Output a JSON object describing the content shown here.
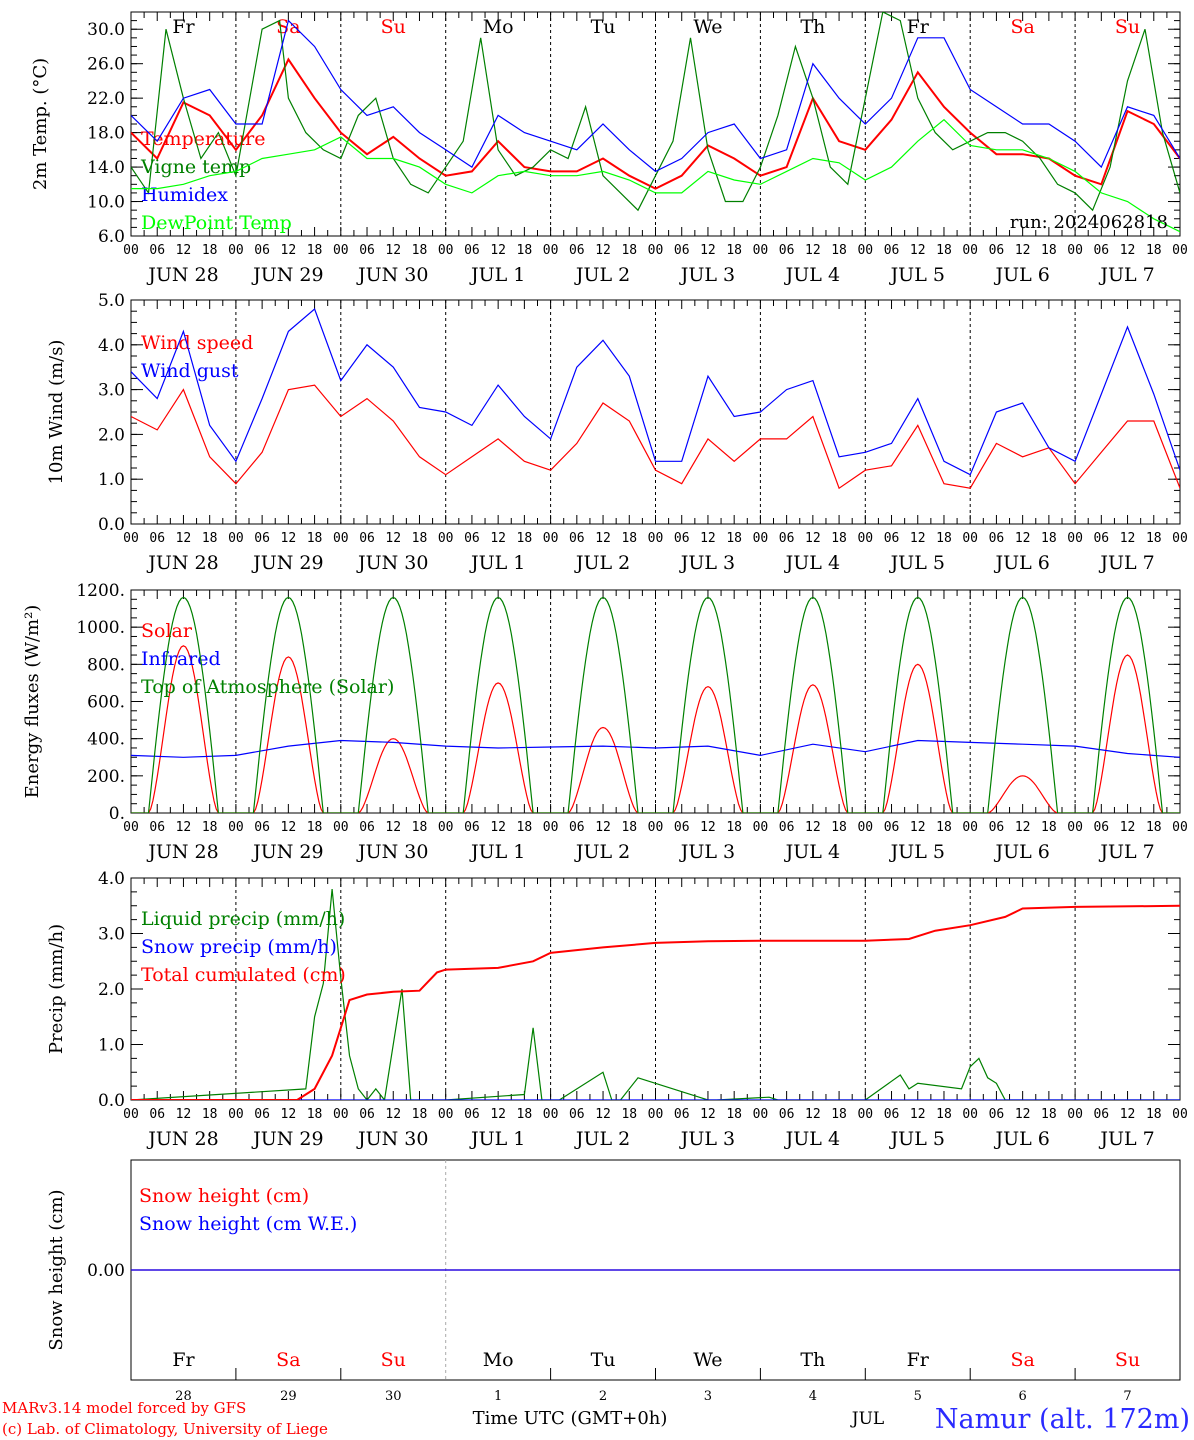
{
  "meta": {
    "run": "run: 2024062818",
    "model_note": "MARv3.14 model forced by GFS",
    "credit": "(c) Lab. of Climatology, University of Liege",
    "xlabel": "Time UTC (GMT+0h)",
    "month_label": "JUL",
    "station": "Namur (alt. 172m)"
  },
  "days": {
    "weekdays": [
      "Fr",
      "Sa",
      "Su",
      "Mo",
      "Tu",
      "We",
      "Th",
      "Fr",
      "Sa",
      "Su"
    ],
    "weekend_flags": [
      false,
      true,
      true,
      false,
      false,
      false,
      false,
      false,
      true,
      true
    ],
    "date_labels": [
      "JUN 28",
      "JUN 29",
      "JUN 30",
      "JUL  1",
      "JUL  2",
      "JUL  3",
      "JUL  4",
      "JUL  5",
      "JUL  6",
      "JUL  7"
    ],
    "day_numbers": [
      "28",
      "29",
      "30",
      "1",
      "2",
      "3",
      "4",
      "5",
      "6",
      "7"
    ],
    "hour_ticks": [
      "00",
      "06",
      "12",
      "18"
    ],
    "final_tick": "00"
  },
  "colors": {
    "red": "#ff0000",
    "green": "#008000",
    "blue": "#0000ff",
    "lime": "#00ff00",
    "weekend": "#ff0000",
    "weekday": "#000000"
  },
  "chart_data": [
    {
      "type": "line",
      "title": "",
      "ylabel": "2m Temp. (°C)",
      "ylim": [
        6,
        32
      ],
      "yticks": [
        "6.0",
        "10.0",
        "14.0",
        "18.0",
        "22.0",
        "26.0",
        "30.0"
      ],
      "xlabel": "",
      "x_unit": "hours since JUN 28 00 UTC",
      "legend_position": "top-left",
      "series": [
        {
          "name": "Temperature",
          "color": "#ff0000",
          "x": [
            0,
            6,
            12,
            18,
            24,
            30,
            36,
            42,
            48,
            54,
            60,
            66,
            72,
            78,
            84,
            90,
            96,
            102,
            108,
            114,
            120,
            126,
            132,
            138,
            144,
            150,
            156,
            162,
            168,
            174,
            180,
            186,
            192,
            198,
            204,
            210,
            216,
            222,
            228,
            234,
            240
          ],
          "y": [
            18,
            15,
            21.5,
            20,
            16,
            20,
            26.5,
            22,
            18,
            15.5,
            17.5,
            15,
            13,
            13.5,
            17,
            14,
            13.5,
            13.5,
            15,
            13,
            11.5,
            13,
            16.5,
            15,
            13,
            14,
            22,
            17,
            16,
            19.5,
            25,
            21,
            18,
            15.5,
            15.5,
            15,
            13,
            12,
            20.5,
            19,
            15
          ]
        },
        {
          "name": "Vigne temp",
          "color": "#008000",
          "x": [
            0,
            4,
            8,
            12,
            16,
            20,
            24,
            30,
            34,
            36,
            40,
            44,
            48,
            52,
            56,
            60,
            64,
            68,
            72,
            76,
            80,
            84,
            88,
            92,
            96,
            100,
            104,
            108,
            112,
            116,
            120,
            124,
            128,
            132,
            136,
            140,
            144,
            148,
            152,
            156,
            160,
            164,
            168,
            172,
            176,
            180,
            184,
            188,
            192,
            196,
            200,
            204,
            208,
            212,
            216,
            220,
            224,
            228,
            232,
            236,
            240
          ],
          "y": [
            14,
            11,
            30,
            22,
            15,
            18,
            13,
            30,
            31,
            22,
            18,
            16,
            15,
            20,
            22,
            15,
            12,
            11,
            14,
            17,
            29,
            16,
            13,
            14,
            16,
            15,
            21,
            13,
            11,
            9,
            13,
            17,
            29,
            16,
            10,
            10,
            14,
            20,
            28,
            22,
            14,
            12,
            22,
            32,
            31,
            22,
            18,
            16,
            17,
            18,
            18,
            17,
            15,
            12,
            11,
            9,
            14,
            24,
            30,
            18,
            11
          ]
        },
        {
          "name": "Humidex",
          "color": "#0000ff",
          "x": [
            0,
            6,
            12,
            18,
            24,
            30,
            36,
            42,
            48,
            54,
            60,
            66,
            72,
            78,
            84,
            90,
            96,
            102,
            108,
            114,
            120,
            126,
            132,
            138,
            144,
            150,
            156,
            162,
            168,
            174,
            180,
            186,
            192,
            198,
            204,
            210,
            216,
            222,
            228,
            234,
            240
          ],
          "y": [
            20,
            17,
            22,
            23,
            19,
            19,
            31,
            28,
            23,
            20,
            21,
            18,
            16,
            14,
            20,
            18,
            17,
            16,
            19,
            16,
            13.5,
            15,
            18,
            19,
            15,
            16,
            26,
            22,
            19,
            22,
            29,
            29,
            23,
            21,
            19,
            19,
            17,
            14,
            21,
            20,
            15
          ]
        },
        {
          "name": "DewPoint Temp",
          "color": "#00ff00",
          "x": [
            0,
            6,
            12,
            18,
            24,
            30,
            36,
            42,
            48,
            54,
            60,
            66,
            72,
            78,
            84,
            90,
            96,
            102,
            108,
            114,
            120,
            126,
            132,
            138,
            144,
            150,
            156,
            162,
            168,
            174,
            180,
            186,
            192,
            198,
            204,
            210,
            216,
            222,
            228,
            234,
            240
          ],
          "y": [
            11.5,
            11.5,
            12,
            13,
            13.5,
            15,
            15.5,
            16,
            17.5,
            15,
            15,
            14,
            12,
            11,
            13,
            13.5,
            13,
            13,
            13.5,
            12.5,
            11,
            11,
            13.5,
            12.5,
            12,
            13.5,
            15,
            14.5,
            12.5,
            14,
            17,
            19.5,
            16.5,
            16,
            16,
            15,
            13.5,
            11,
            10,
            8,
            6.5
          ]
        }
      ]
    },
    {
      "type": "line",
      "title": "",
      "ylabel": "10m Wind (m/s)",
      "ylim": [
        0,
        5
      ],
      "yticks": [
        "0.0",
        "1.0",
        "2.0",
        "3.0",
        "4.0",
        "5.0"
      ],
      "xlabel": "",
      "x_unit": "hours since JUN 28 00 UTC",
      "legend_position": "top-left",
      "series": [
        {
          "name": "Wind speed",
          "color": "#ff0000",
          "x": [
            0,
            6,
            12,
            18,
            24,
            30,
            36,
            42,
            48,
            54,
            60,
            66,
            72,
            78,
            84,
            90,
            96,
            102,
            108,
            114,
            120,
            126,
            132,
            138,
            144,
            150,
            156,
            162,
            168,
            174,
            180,
            186,
            192,
            198,
            204,
            210,
            216,
            222,
            228,
            234,
            240
          ],
          "y": [
            2.4,
            2.1,
            3,
            1.5,
            0.9,
            1.6,
            3,
            3.1,
            2.4,
            2.8,
            2.3,
            1.5,
            1.1,
            1.5,
            1.9,
            1.4,
            1.2,
            1.8,
            2.7,
            2.3,
            1.2,
            0.9,
            1.9,
            1.4,
            1.9,
            1.9,
            2.4,
            0.8,
            1.2,
            1.3,
            2.2,
            0.9,
            0.8,
            1.8,
            1.5,
            1.7,
            0.9,
            1.6,
            2.3,
            2.3,
            0.8
          ]
        },
        {
          "name": "Wind gust",
          "color": "#0000ff",
          "x": [
            0,
            6,
            12,
            18,
            24,
            30,
            36,
            42,
            48,
            54,
            60,
            66,
            72,
            78,
            84,
            90,
            96,
            102,
            108,
            114,
            120,
            126,
            132,
            138,
            144,
            150,
            156,
            162,
            168,
            174,
            180,
            186,
            192,
            198,
            204,
            210,
            216,
            222,
            228,
            234,
            240
          ],
          "y": [
            3.4,
            2.8,
            4.3,
            2.2,
            1.4,
            2.8,
            4.3,
            4.8,
            3.2,
            4,
            3.5,
            2.6,
            2.5,
            2.2,
            3.1,
            2.4,
            1.9,
            3.5,
            4.1,
            3.3,
            1.4,
            1.4,
            3.3,
            2.4,
            2.5,
            3,
            3.2,
            1.5,
            1.6,
            1.8,
            2.8,
            1.4,
            1.1,
            2.5,
            2.7,
            1.7,
            1.4,
            2.9,
            4.4,
            2.9,
            1.2
          ]
        }
      ]
    },
    {
      "type": "line",
      "title": "",
      "ylabel": "Energy fluxes (W/m²)",
      "ylim": [
        0,
        1200
      ],
      "yticks": [
        "0.",
        "200.",
        "400.",
        "600.",
        "800.",
        "1000.",
        "1200."
      ],
      "xlabel": "",
      "x_unit": "hours since JUN 28 00 UTC",
      "legend_position": "top-left",
      "series": [
        {
          "name": "Solar",
          "color": "#ff0000",
          "peaks_by_day": [
            900,
            840,
            400,
            700,
            460,
            680,
            690,
            800,
            200,
            850
          ]
        },
        {
          "name": "Infrared",
          "color": "#0000ff",
          "x": [
            0,
            12,
            24,
            36,
            48,
            60,
            72,
            84,
            96,
            108,
            120,
            132,
            144,
            156,
            168,
            180,
            192,
            204,
            216,
            228,
            240
          ],
          "y": [
            310,
            300,
            310,
            360,
            390,
            380,
            360,
            350,
            355,
            360,
            350,
            360,
            310,
            370,
            330,
            390,
            380,
            370,
            360,
            320,
            300
          ]
        },
        {
          "name": "Top of Atmosphere (Solar)",
          "color": "#008000",
          "peak_value": 1160,
          "daylight_hours": [
            4,
            20
          ]
        }
      ]
    },
    {
      "type": "line",
      "title": "",
      "ylabel": "Precip (mm/h)",
      "ylim": [
        0,
        4
      ],
      "yticks": [
        "0.0",
        "1.0",
        "2.0",
        "3.0",
        "4.0"
      ],
      "xlabel": "",
      "x_unit": "hours since JUN 28 00 UTC",
      "legend_position": "top-left",
      "series": [
        {
          "name": "Liquid precip (mm/h)",
          "color": "#008000",
          "x": [
            0,
            40,
            42,
            44,
            46,
            48,
            50,
            52,
            54,
            56,
            58,
            62,
            64,
            70,
            72,
            90,
            92,
            94,
            98,
            108,
            110,
            112,
            116,
            130,
            132,
            134,
            146,
            148,
            168,
            176,
            178,
            180,
            190,
            192,
            194,
            196,
            198,
            200,
            202,
            204,
            240
          ],
          "y": [
            0,
            0.2,
            1.5,
            2.1,
            3.8,
            2.2,
            0.8,
            0.2,
            0,
            0.2,
            0,
            2,
            0,
            0,
            0,
            0.1,
            1.3,
            0,
            0,
            0.5,
            0,
            0,
            0.4,
            0.05,
            0,
            0,
            0.05,
            0,
            0,
            0.45,
            0.2,
            0.3,
            0.2,
            0.6,
            0.75,
            0.4,
            0.3,
            0,
            0,
            0,
            0
          ]
        },
        {
          "name": "Snow precip (mm/h)",
          "color": "#0000ff",
          "x": [
            0,
            240
          ],
          "y": [
            0,
            0
          ]
        },
        {
          "name": "Total cumulated (cm)",
          "color": "#ff0000",
          "x": [
            0,
            38,
            42,
            46,
            50,
            54,
            60,
            66,
            70,
            72,
            84,
            92,
            96,
            108,
            120,
            132,
            144,
            156,
            168,
            178,
            184,
            192,
            200,
            204,
            216,
            240
          ],
          "y": [
            0,
            0,
            0.2,
            0.8,
            1.8,
            1.9,
            1.95,
            1.97,
            2.3,
            2.35,
            2.38,
            2.5,
            2.65,
            2.75,
            2.83,
            2.86,
            2.87,
            2.87,
            2.87,
            2.9,
            3.05,
            3.15,
            3.3,
            3.45,
            3.48,
            3.5
          ]
        }
      ]
    },
    {
      "type": "line",
      "title": "",
      "ylabel": "Snow height (cm)",
      "ylim": [
        -1,
        1
      ],
      "yticks": [
        "0.00"
      ],
      "xlabel": "Time UTC (GMT+0h)",
      "x_unit": "hours since JUN 28 00 UTC",
      "legend_position": "top-left",
      "series": [
        {
          "name": "Snow height (cm)",
          "color": "#ff0000",
          "x": [
            0,
            240
          ],
          "y": [
            0,
            0
          ]
        },
        {
          "name": "Snow height (cm W.E.)",
          "color": "#0000ff",
          "x": [
            0,
            240
          ],
          "y": [
            0,
            0
          ]
        }
      ]
    }
  ]
}
